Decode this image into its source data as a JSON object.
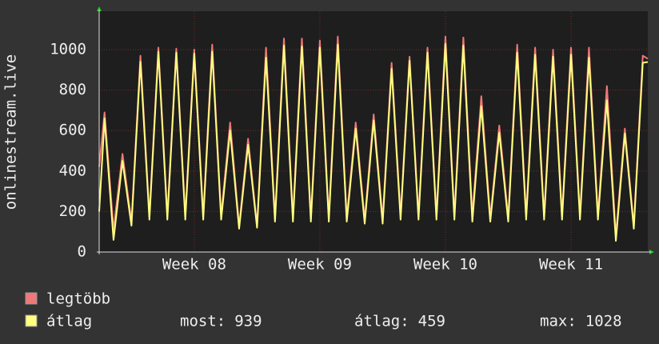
{
  "chart_data": {
    "type": "line",
    "y_label": "onlinestream.live",
    "x": [
      0,
      0.3,
      0.8,
      1.3,
      1.8,
      2.3,
      2.8,
      3.3,
      3.8,
      4.3,
      4.8,
      5.3,
      5.8,
      6.3,
      6.8,
      7.3,
      7.8,
      8.3,
      8.8,
      9.3,
      9.8,
      10.3,
      10.8,
      11.3,
      11.8,
      12.3,
      12.8,
      13.3,
      13.8,
      14.3,
      14.8,
      15.3,
      15.8,
      16.3,
      16.8,
      17.3,
      17.8,
      18.3,
      18.8,
      19.3,
      19.8,
      20.3,
      20.8,
      21.3,
      21.8,
      22.3,
      22.8,
      23.3,
      23.8,
      24.3,
      24.8,
      25.3,
      25.8,
      26.3,
      26.8,
      27.3,
      27.8,
      28.3,
      28.8,
      29.3,
      29.8,
      30.3,
      30.58
    ],
    "series": [
      {
        "name": "legtöbb",
        "color": "#f07878",
        "values": [
          420,
          690,
          110,
          485,
          150,
          970,
          180,
          1010,
          180,
          1005,
          180,
          1000,
          180,
          1025,
          180,
          640,
          130,
          560,
          130,
          1010,
          170,
          1055,
          170,
          1055,
          170,
          1045,
          170,
          1065,
          170,
          640,
          160,
          680,
          160,
          935,
          180,
          965,
          180,
          1010,
          180,
          1065,
          180,
          1060,
          180,
          770,
          170,
          625,
          170,
          1025,
          180,
          1010,
          180,
          1000,
          180,
          1010,
          180,
          1010,
          180,
          820,
          80,
          610,
          130,
          970,
          955
        ]
      },
      {
        "name": "átlag",
        "color": "#ffff80",
        "values": [
          200,
          660,
          60,
          450,
          130,
          940,
          160,
          990,
          160,
          985,
          160,
          980,
          160,
          990,
          160,
          600,
          115,
          530,
          120,
          960,
          150,
          1020,
          150,
          1015,
          150,
          1010,
          150,
          1025,
          150,
          610,
          140,
          650,
          140,
          905,
          160,
          945,
          160,
          985,
          160,
          1028,
          160,
          1020,
          150,
          720,
          150,
          590,
          150,
          985,
          160,
          975,
          160,
          965,
          160,
          975,
          160,
          960,
          160,
          750,
          55,
          585,
          115,
          935,
          939
        ]
      }
    ],
    "xlim": [
      0,
      30.58
    ],
    "xticks": [
      {
        "value": 5.3,
        "label": "Week 08"
      },
      {
        "value": 12.3,
        "label": "Week 09"
      },
      {
        "value": 19.3,
        "label": "Week 10"
      },
      {
        "value": 26.3,
        "label": "Week 11"
      }
    ],
    "ylim": [
      0,
      1190
    ],
    "yticks": [
      0,
      200,
      400,
      600,
      800,
      1000
    ],
    "grid": true,
    "stats": [
      {
        "label": "most:",
        "value": 939
      },
      {
        "label": "átlag:",
        "value": 459
      },
      {
        "label": "max:",
        "value": 1028
      }
    ]
  }
}
